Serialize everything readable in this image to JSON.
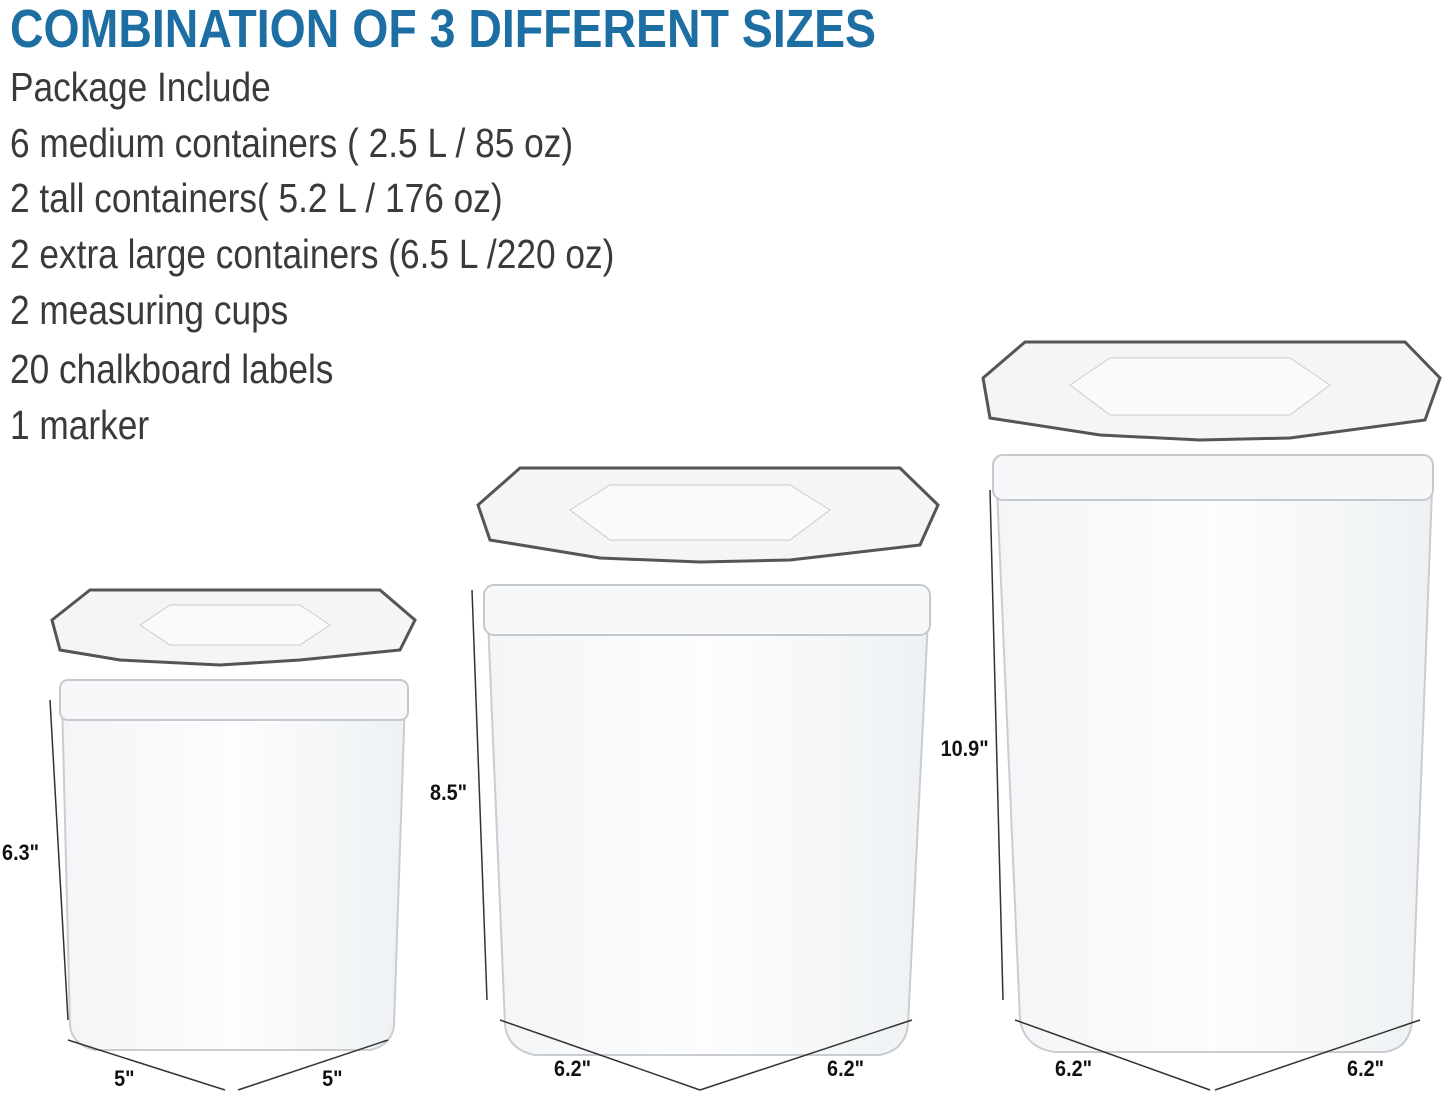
{
  "title": "COMBINATION OF 3 DIFFERENT SIZES",
  "package": {
    "heading": "Package Include",
    "items": [
      "6 medium containers ( 2.5 L / 85 oz)",
      "2 tall containers( 5.2 L / 176 oz)",
      "2 extra large containers (6.5 L /220 oz)",
      "2 measuring cups",
      "20 chalkboard labels",
      "1 marker"
    ]
  },
  "containers": [
    {
      "height": "6.3\"",
      "width": "5\"",
      "depth": "5\""
    },
    {
      "height": "8.5\"",
      "width": "6.2\"",
      "depth": "6.2\""
    },
    {
      "height": "10.9\"",
      "width": "6.2\"",
      "depth": "6.2\""
    }
  ],
  "colors": {
    "title": "#1d6fa3",
    "text": "#3a3a3a"
  }
}
